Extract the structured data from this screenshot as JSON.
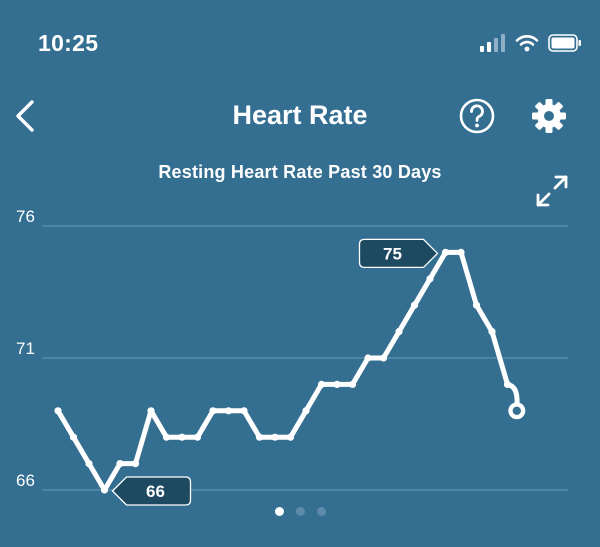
{
  "status": {
    "time": "10:25"
  },
  "header": {
    "title": "Heart Rate",
    "back_icon": "chevron-left-icon",
    "help_icon": "question-circle-icon",
    "settings_icon": "gear-icon"
  },
  "chart_data": {
    "type": "line",
    "title": "Resting Heart Rate Past 30 Days",
    "xlabel": "",
    "ylabel": "",
    "ylim": [
      66,
      76
    ],
    "yticks": [
      66,
      71,
      76
    ],
    "grid": true,
    "x": [
      1,
      2,
      3,
      4,
      5,
      6,
      7,
      8,
      9,
      10,
      11,
      12,
      13,
      14,
      15,
      16,
      17,
      18,
      19,
      20,
      21,
      22,
      23,
      24,
      25,
      26,
      27,
      28,
      29,
      30
    ],
    "values": [
      69,
      68,
      67,
      66,
      67,
      67,
      69,
      68,
      68,
      68,
      69,
      69,
      69,
      68,
      68,
      68,
      69,
      70,
      70,
      70,
      71,
      71,
      72,
      73,
      74,
      75,
      75,
      73,
      72,
      70
    ],
    "current": {
      "x": 30.6,
      "value": 69
    },
    "callouts": [
      {
        "label": "66",
        "x": 4,
        "value": 66
      },
      {
        "label": "75",
        "x": 26,
        "value": 75
      }
    ],
    "colors": {
      "line": "#ffffff",
      "grid": "#6b98b5",
      "callout_bg": "#1d4961",
      "background": "#346f92"
    }
  },
  "pager": {
    "count": 3,
    "active": 0
  }
}
